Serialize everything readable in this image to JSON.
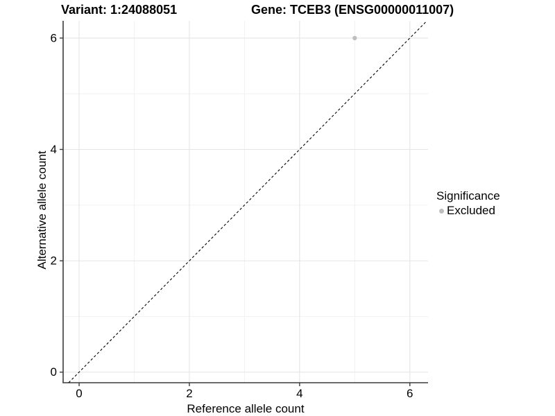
{
  "titles": {
    "variant": "Variant: 1:24088051",
    "gene": "Gene: TCEB3 (ENSG00000011007)"
  },
  "axes": {
    "x_label": "Reference allele count",
    "y_label": "Alternative allele count"
  },
  "legend": {
    "title": "Significance",
    "items": [
      {
        "label": "Excluded",
        "color": "#bebebe"
      }
    ]
  },
  "chart_data": {
    "type": "scatter",
    "title": "Variant: 1:24088051 — Gene: TCEB3 (ENSG00000011007)",
    "xlabel": "Reference allele count",
    "ylabel": "Alternative allele count",
    "xlim": [
      -0.29,
      6.33
    ],
    "ylim": [
      -0.19,
      6.31
    ],
    "x_major_breaks": [
      0,
      2,
      4,
      6
    ],
    "x_minor_breaks": [
      1,
      3,
      5
    ],
    "y_major_breaks": [
      0,
      2,
      4,
      6
    ],
    "y_minor_breaks": [
      1,
      3,
      5
    ],
    "x_tick_labels": [
      "0",
      "2",
      "4",
      "6"
    ],
    "y_tick_labels": [
      "0",
      "2",
      "4",
      "6"
    ],
    "grid": true,
    "legend_position": "right",
    "series": [
      {
        "name": "Excluded",
        "points": [
          {
            "x": 5,
            "y": 6
          }
        ]
      }
    ],
    "identity_line": {
      "style": "dashed",
      "from": [
        -0.19,
        -0.19
      ],
      "to": [
        6.31,
        6.31
      ]
    },
    "style": {
      "point_color": "#bebebe",
      "point_radius": 3.2,
      "grid_major": "#e4e4e4",
      "grid_minor": "#f1f1f1",
      "axis_line": "#3a3a3a",
      "identity_color": "#000000",
      "text": "#000000",
      "background": "#ffffff"
    }
  }
}
